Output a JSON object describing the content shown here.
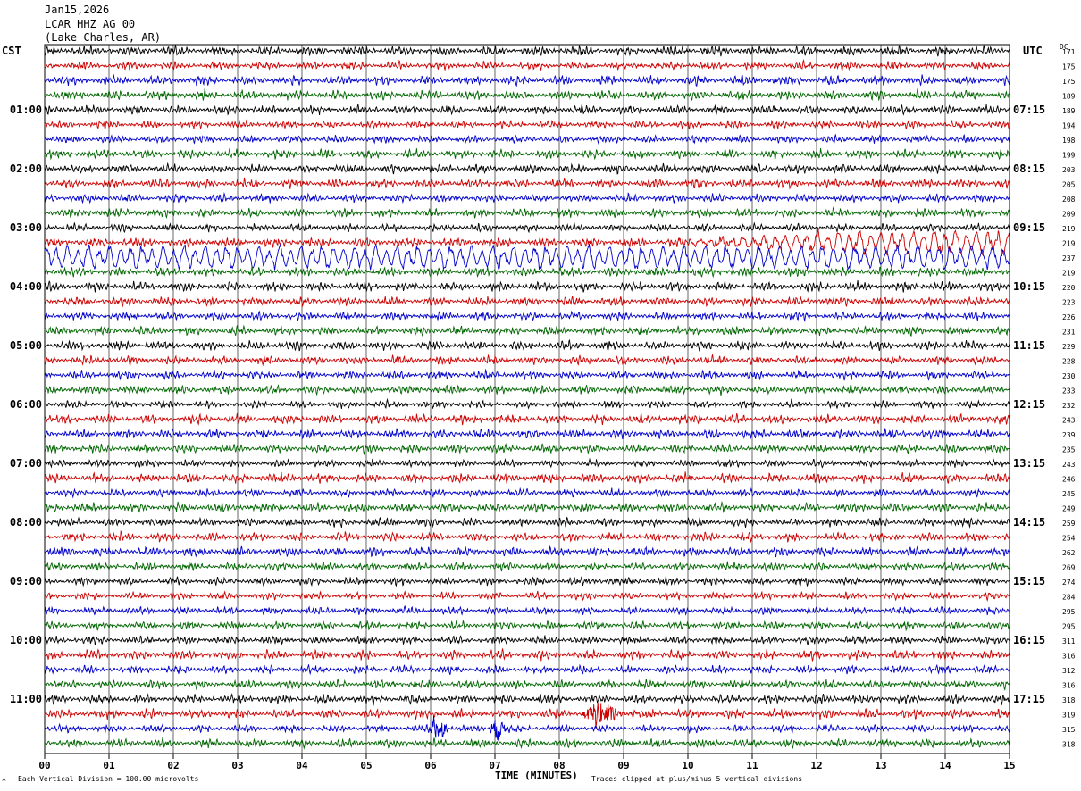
{
  "header": {
    "date": "Jan15,2026",
    "station": "LCAR HHZ AG 00",
    "location": "(Lake Charles, AR)"
  },
  "left_axis_title": "CST",
  "right_axis_title": "UTC",
  "dc_label": "DC",
  "footer": {
    "scale_note": "Each Vertical Division =  100.00 microvolts",
    "clip_note": "Traces clipped at plus/minus 5 vertical divisions",
    "corner_mark": "^"
  },
  "colors": {
    "cycle": [
      "#000000",
      "#cc0000",
      "#0000cc",
      "#006600"
    ],
    "grid": "#000000"
  },
  "chart_data": {
    "type": "line",
    "title": "",
    "xlabel": "TIME (MINUTES)",
    "ylabel": "",
    "xlim": [
      0,
      15
    ],
    "x_ticks": [
      "00",
      "01",
      "02",
      "03",
      "04",
      "05",
      "06",
      "07",
      "08",
      "09",
      "10",
      "11",
      "12",
      "13",
      "14",
      "15"
    ],
    "rows_per_hour": 4,
    "minutes_per_row": 15,
    "left_hour_labels": [
      "01:00",
      "02:00",
      "03:00",
      "04:00",
      "05:00",
      "06:00",
      "07:00",
      "08:00",
      "09:00",
      "10:00",
      "11:00"
    ],
    "right_hour_labels": [
      "07:15",
      "08:15",
      "09:15",
      "10:15",
      "11:15",
      "12:15",
      "13:15",
      "14:15",
      "15:15",
      "16:15",
      "17:15"
    ],
    "dc_offsets": [
      171,
      175,
      175,
      189,
      189,
      194,
      198,
      199,
      203,
      205,
      208,
      209,
      219,
      219,
      237,
      219,
      220,
      223,
      226,
      231,
      229,
      228,
      230,
      233,
      232,
      243,
      239,
      235,
      243,
      246,
      245,
      249,
      259,
      254,
      262,
      269,
      274,
      284,
      295,
      295,
      311,
      316,
      312,
      316,
      318,
      319,
      315,
      318
    ],
    "grid": true,
    "events": [
      {
        "row": 14,
        "description": "long-period swell",
        "start_min": 0.0,
        "end_min": 15.0
      },
      {
        "row": 13,
        "description": "long-period swell",
        "start_min": 9.5,
        "end_min": 15.0
      },
      {
        "row": 46,
        "description": "local burst",
        "start_min": 5.9,
        "end_min": 6.3
      },
      {
        "row": 46,
        "description": "local burst",
        "start_min": 6.9,
        "end_min": 7.2
      },
      {
        "row": 45,
        "description": "local burst",
        "start_min": 8.3,
        "end_min": 9.0
      }
    ]
  }
}
